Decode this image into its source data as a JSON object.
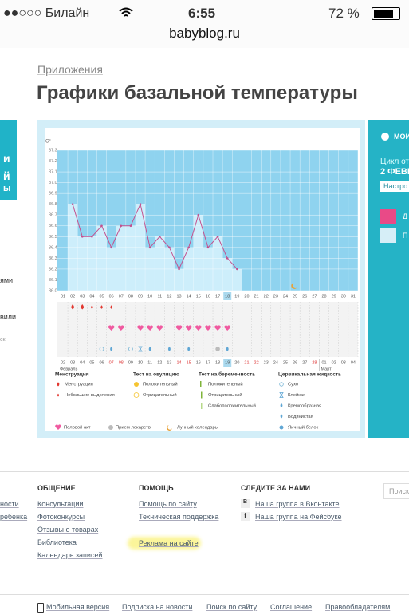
{
  "status_bar": {
    "carrier": "●●○○○ Билайн",
    "time": "6:55",
    "battery": "72 %"
  },
  "url": "babyblog.ru",
  "sidebar_fragments": [
    "и",
    "й",
    "ы",
    "ями",
    "вили",
    "ск"
  ],
  "breadcrumb": "Приложения",
  "title": "Графики базальной температуры",
  "chart": {
    "y_unit": "С°",
    "ylim": [
      36.0,
      37.3
    ],
    "yticks": [
      {
        "value": 36.0,
        "label": "36.0"
      },
      36.1,
      36.2,
      36.3,
      36.4,
      36.5,
      36.6,
      36.7,
      36.8,
      36.9,
      {
        "value": 37.0,
        "label": "37.0"
      },
      37.1,
      37.2,
      37.3
    ],
    "days": [
      "01",
      "02",
      "03",
      "04",
      "05",
      "06",
      "07",
      "08",
      "09",
      "10",
      "11",
      "12",
      "13",
      "14",
      "15",
      "16",
      "17",
      "18",
      "19",
      "20",
      "21",
      "22",
      "23",
      "24",
      "25",
      "26",
      "27",
      "28",
      "29",
      "30",
      "31"
    ],
    "values": [
      null,
      36.8,
      36.5,
      36.5,
      36.6,
      36.4,
      36.6,
      36.6,
      36.8,
      36.4,
      36.5,
      36.4,
      36.2,
      36.4,
      36.7,
      36.4,
      36.5,
      36.3,
      36.2,
      null,
      null,
      null,
      null,
      null,
      null,
      null,
      null,
      null,
      null,
      null,
      null
    ],
    "dates": [
      "02",
      "03",
      "04",
      "05",
      "06",
      "07",
      "08",
      "09",
      "10",
      "11",
      "12",
      "13",
      "14",
      "15",
      "16",
      "17",
      "18",
      "19",
      "20",
      "21",
      "22",
      "23",
      "24",
      "25",
      "26",
      "27",
      "28",
      "01",
      "02",
      "03",
      "04"
    ],
    "months": [
      "Февраль",
      "Март"
    ],
    "legend": [
      {
        "title": "Менструация",
        "items": [
          "Менструация",
          "Небольшие выделения"
        ]
      },
      {
        "title": "Тест на овуляцию",
        "items": [
          "Положительный",
          "Отрицательный"
        ]
      },
      {
        "title": "Тест на беременность",
        "items": [
          "Положительный",
          "Отрицательный",
          "Слабоположительный"
        ]
      },
      {
        "title": "Цервикальная жидкость",
        "items": [
          "Сухо",
          "Клейкая",
          "Кремообразная",
          "Водянистая",
          "Яичный белок"
        ]
      }
    ],
    "legend_bottom": [
      "Половой акт",
      "Прием лекарств",
      "Лунный календарь"
    ]
  },
  "side_panel": {
    "heading": "МОИ",
    "cycle_label": "Цикл от",
    "cycle_date": "2 ФЕВР",
    "settings": "Настро",
    "item1": "Д",
    "item2": "П"
  },
  "footer": {
    "left_fragments": [
      "ности",
      "ребенка"
    ],
    "columns": [
      {
        "title": "ОБЩЕНИЕ",
        "links": [
          "Консультации",
          "Фотоконкурсы",
          "Отзывы о товарах",
          "Библиотека",
          "Календарь записей"
        ]
      },
      {
        "title": "ПОМОЩЬ",
        "links": [
          "Помощь по сайту",
          "Техническая поддержка",
          "Реклама на сайте"
        ]
      },
      {
        "title": "СЛЕДИТЕ ЗА НАМИ",
        "links": [
          "Наша группа в Вконтакте",
          "Наша группа на Фейсбуке"
        ]
      }
    ],
    "search": "Поиск",
    "bottom_links": [
      "Мобильная версия",
      "Подписка на новости",
      "Поиск по сайту",
      "Соглашение",
      "Правообладателям"
    ]
  }
}
